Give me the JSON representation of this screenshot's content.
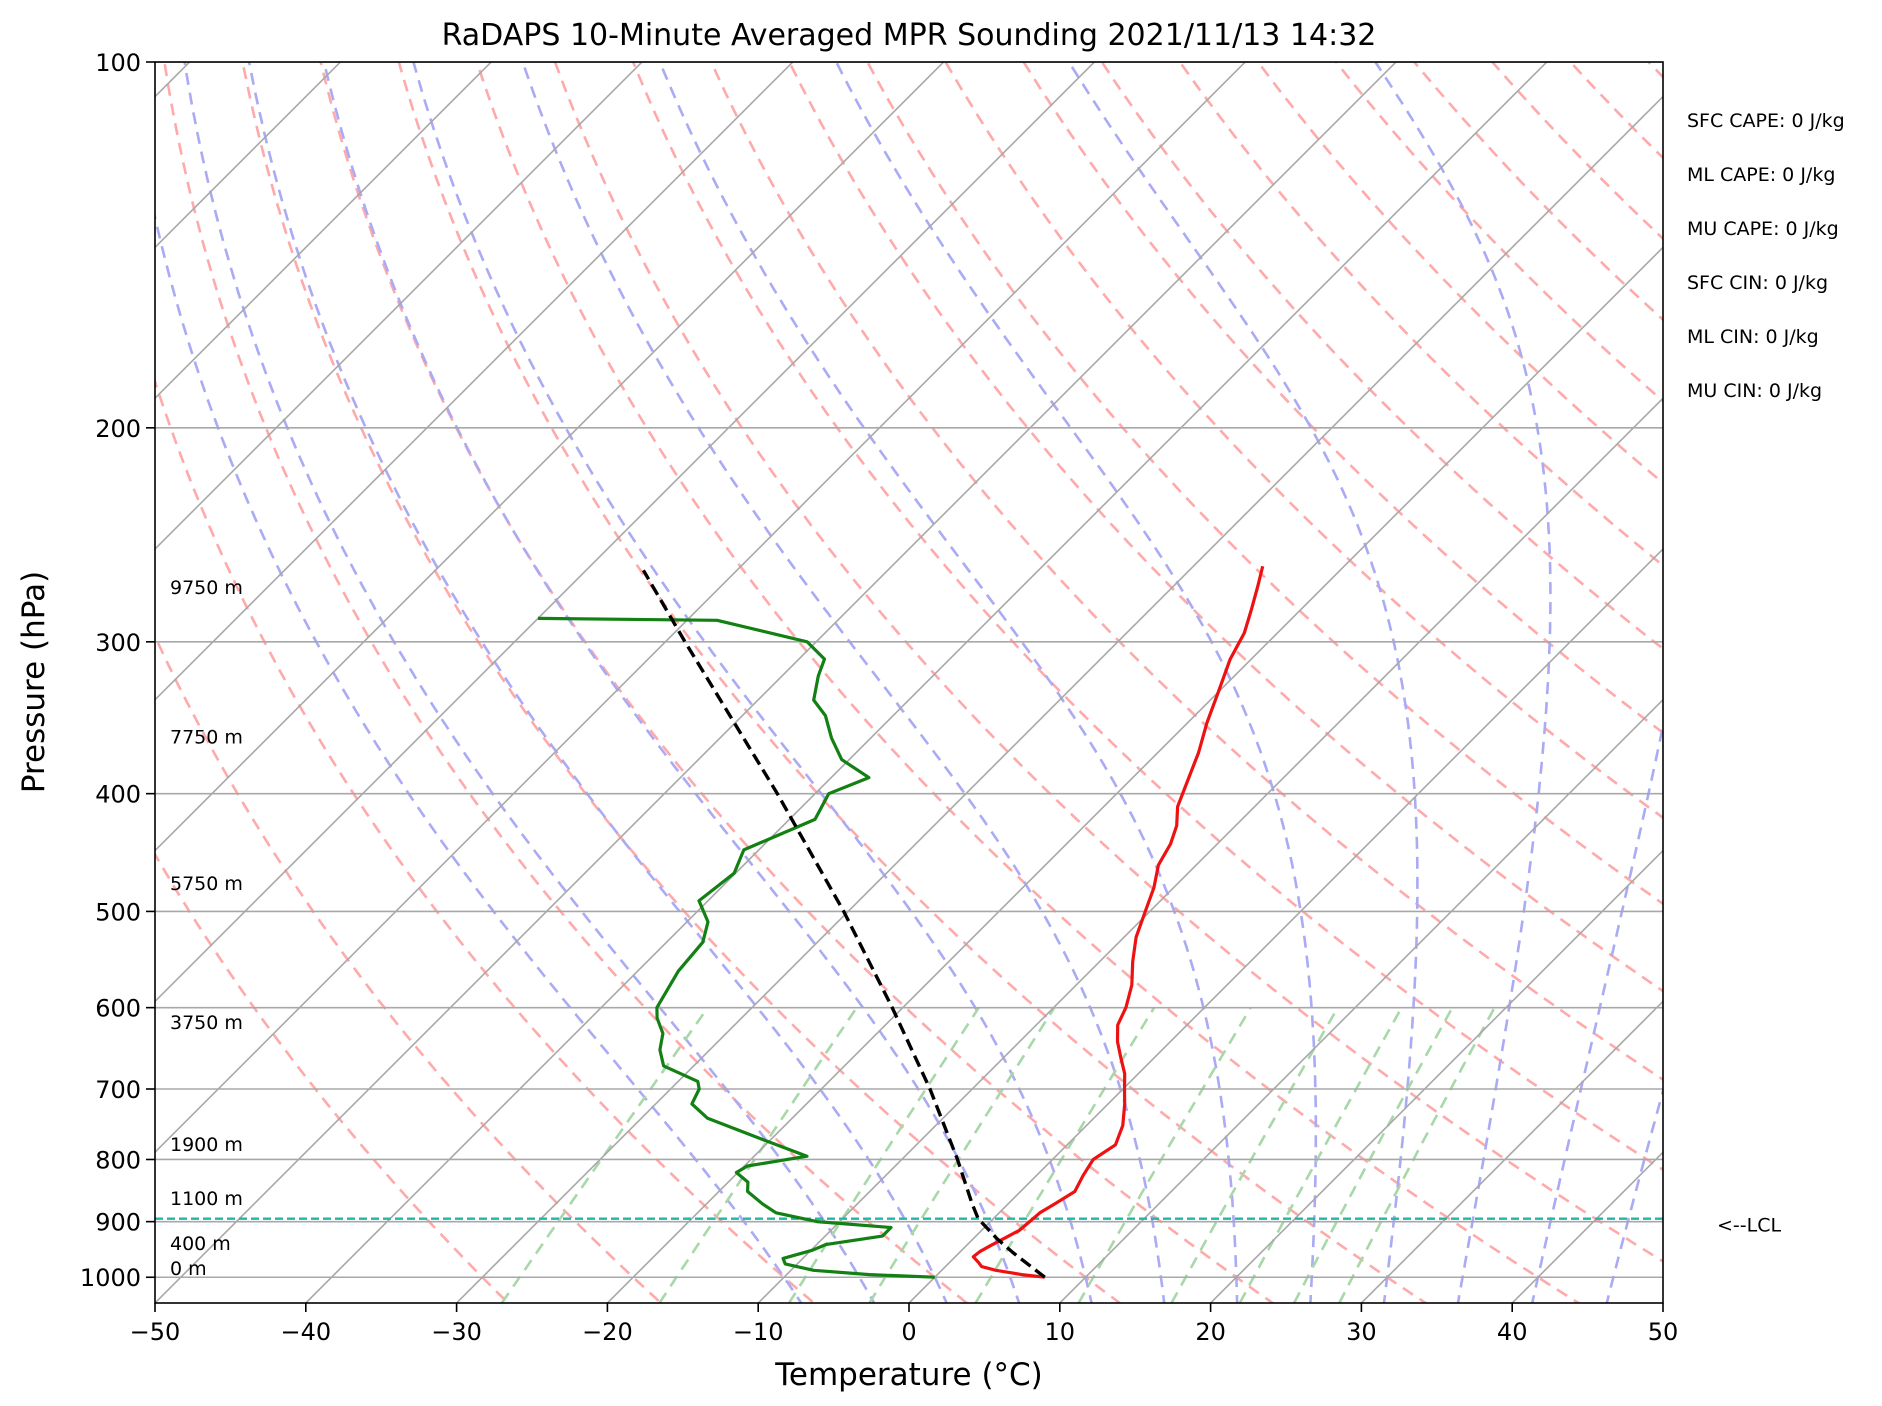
{
  "chart_data": {
    "type": "line",
    "title": "RaDAPS 10-Minute Averaged MPR Sounding 2021/11/13 14:32",
    "xlabel": "Temperature (°C)",
    "ylabel": "Pressure (hPa)",
    "xlim": [
      -50,
      50
    ],
    "ylim": [
      1050,
      100
    ],
    "y_scale": "log",
    "skew_t": true,
    "grid": true,
    "xticks": [
      -50,
      -40,
      -30,
      -20,
      -10,
      0,
      10,
      20,
      30,
      40,
      50
    ],
    "xtick_labels": [
      "−50",
      "−40",
      "−30",
      "−20",
      "−10",
      "0",
      "10",
      "20",
      "30",
      "40",
      "50"
    ],
    "yticks": [
      100,
      200,
      300,
      400,
      500,
      600,
      700,
      800,
      900,
      1000
    ],
    "ytick_labels": [
      "100",
      "200",
      "300",
      "400",
      "500",
      "600",
      "700",
      "800",
      "900",
      "1000"
    ],
    "background_lines": {
      "isotherms": [
        -150,
        -140,
        -130,
        -120,
        -110,
        -100,
        -90,
        -80,
        -70,
        -60,
        -50,
        -40,
        -30,
        -20,
        -10,
        0,
        10,
        20,
        30,
        40,
        50
      ],
      "dry_adiabat_theta_c": [
        -30,
        -20,
        -10,
        0,
        10,
        20,
        30,
        40,
        50,
        60,
        70,
        80,
        90,
        100,
        110,
        120,
        130,
        140,
        150,
        160,
        170,
        180,
        190,
        200
      ],
      "moist_adiabat_start_c": [
        -10,
        -5,
        0,
        5,
        10,
        15,
        20,
        25,
        30,
        35,
        40,
        45
      ],
      "mixing_ratio_gkg": [
        0.4,
        1,
        2,
        3,
        5,
        8,
        12,
        16,
        20,
        24
      ],
      "colors": {
        "isotherm": "#a8a8a8",
        "dry_adiabat": "#ffaaaa",
        "moist_adiabat": "#aaaaf5",
        "mixing_ratio": "#a8d8a8"
      }
    },
    "series": [
      {
        "name": "temperature",
        "color": "#ee1111",
        "points": [
          [
            1000,
            7.3
          ],
          [
            995,
            5.6
          ],
          [
            987,
            3.6
          ],
          [
            980,
            2.4
          ],
          [
            972,
            1.9
          ],
          [
            962,
            1.2
          ],
          [
            952,
            1.3
          ],
          [
            942,
            1.6
          ],
          [
            930,
            2.0
          ],
          [
            915,
            2.5
          ],
          [
            900,
            2.6
          ],
          [
            885,
            2.7
          ],
          [
            870,
            3.1
          ],
          [
            850,
            3.6
          ],
          [
            825,
            3.1
          ],
          [
            800,
            2.7
          ],
          [
            778,
            3.2
          ],
          [
            750,
            2.4
          ],
          [
            720,
            1.1
          ],
          [
            700,
            0.1
          ],
          [
            680,
            -0.9
          ],
          [
            660,
            -2.2
          ],
          [
            640,
            -3.5
          ],
          [
            620,
            -4.6
          ],
          [
            600,
            -5.2
          ],
          [
            575,
            -6.3
          ],
          [
            550,
            -7.8
          ],
          [
            525,
            -9.2
          ],
          [
            500,
            -10.3
          ],
          [
            478,
            -11.3
          ],
          [
            458,
            -12.5
          ],
          [
            440,
            -13.1
          ],
          [
            425,
            -13.9
          ],
          [
            410,
            -15.1
          ],
          [
            395,
            -15.9
          ],
          [
            370,
            -17.3
          ],
          [
            350,
            -18.7
          ],
          [
            330,
            -20.0
          ],
          [
            310,
            -21.4
          ],
          [
            295,
            -22.2
          ],
          [
            282,
            -23.3
          ],
          [
            270,
            -24.4
          ],
          [
            260,
            -25.4
          ]
        ]
      },
      {
        "name": "dewpoint",
        "color": "#128012",
        "points": [
          [
            1000,
            0.0
          ],
          [
            995,
            -4.5
          ],
          [
            987,
            -8.5
          ],
          [
            975,
            -10.8
          ],
          [
            965,
            -11.3
          ],
          [
            950,
            -9.9
          ],
          [
            940,
            -9.4
          ],
          [
            925,
            -6.2
          ],
          [
            910,
            -6.2
          ],
          [
            900,
            -11.5
          ],
          [
            885,
            -14.8
          ],
          [
            870,
            -16.3
          ],
          [
            850,
            -18.1
          ],
          [
            835,
            -18.7
          ],
          [
            820,
            -20.1
          ],
          [
            810,
            -19.8
          ],
          [
            795,
            -16.5
          ],
          [
            770,
            -20.6
          ],
          [
            740,
            -25.6
          ],
          [
            720,
            -27.6
          ],
          [
            700,
            -28.1
          ],
          [
            690,
            -28.7
          ],
          [
            670,
            -32.0
          ],
          [
            650,
            -33.3
          ],
          [
            630,
            -34.2
          ],
          [
            612,
            -35.6
          ],
          [
            600,
            -36.3
          ],
          [
            560,
            -37.3
          ],
          [
            530,
            -37.6
          ],
          [
            510,
            -38.6
          ],
          [
            490,
            -40.6
          ],
          [
            465,
            -40.1
          ],
          [
            445,
            -41.0
          ],
          [
            420,
            -38.3
          ],
          [
            400,
            -39.1
          ],
          [
            388,
            -37.5
          ],
          [
            375,
            -40.5
          ],
          [
            360,
            -42.6
          ],
          [
            345,
            -44.5
          ],
          [
            335,
            -46.3
          ],
          [
            320,
            -47.6
          ],
          [
            310,
            -48.3
          ],
          [
            300,
            -50.6
          ],
          [
            288,
            -58.0
          ],
          [
            287,
            -70.0
          ]
        ]
      },
      {
        "name": "parcel profile",
        "color": "#000000",
        "dashed": true,
        "points": [
          [
            1000,
            7.3
          ],
          [
            955,
            3.6
          ],
          [
            930,
            1.6
          ],
          [
            895,
            -1.0
          ],
          [
            870,
            -2.4
          ],
          [
            800,
            -6.3
          ],
          [
            700,
            -12.8
          ],
          [
            600,
            -20.7
          ],
          [
            500,
            -30.3
          ],
          [
            400,
            -42.5
          ],
          [
            300,
            -58.7
          ],
          [
            262,
            -66.2
          ]
        ]
      }
    ],
    "lcl": {
      "pressure": 895,
      "label": "<--LCL",
      "color": "#22b5a8"
    },
    "height_labels": [
      {
        "pressure": 1000,
        "text": "0 m"
      },
      {
        "pressure": 953,
        "text": "400 m"
      },
      {
        "pressure": 875,
        "text": "1100 m"
      },
      {
        "pressure": 790,
        "text": "1900 m"
      },
      {
        "pressure": 627,
        "text": "3750 m"
      },
      {
        "pressure": 482,
        "text": "5750 m"
      },
      {
        "pressure": 365,
        "text": "7750 m"
      },
      {
        "pressure": 275,
        "text": "9750 m"
      }
    ],
    "indices": [
      "SFC CAPE: 0 J/kg",
      "ML CAPE: 0 J/kg",
      "MU CAPE: 0 J/kg",
      "SFC CIN: 0 J/kg",
      "ML CIN: 0 J/kg",
      "MU CIN: 0 J/kg"
    ]
  }
}
